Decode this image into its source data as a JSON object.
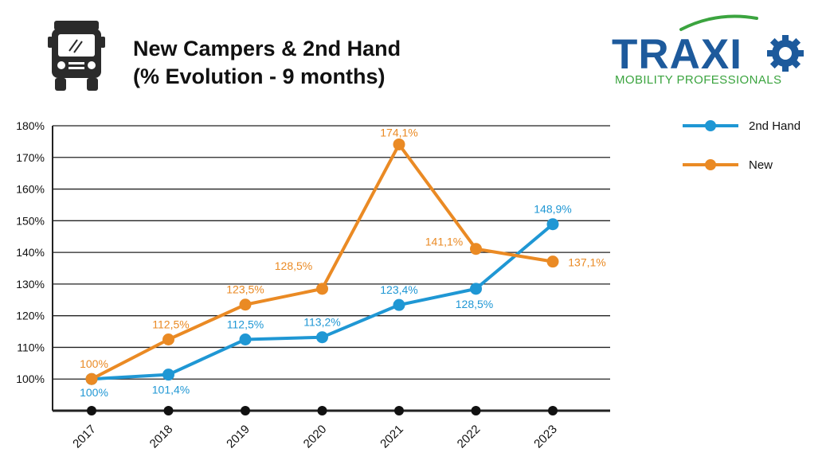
{
  "header": {
    "title_line1": "New Campers & 2nd Hand",
    "title_line2": "(% Evolution - 9 months)"
  },
  "icons": {
    "vehicle": "camper-van-icon",
    "logo": "traxio-logo"
  },
  "logo": {
    "wordmark": "TRAXIO",
    "tagline": "MOBILITY PROFESSIONALS",
    "colors": {
      "wordmark": "#1d5a9c",
      "accent": "#3ba43f"
    }
  },
  "chart_data": {
    "type": "line",
    "title": "New Campers & 2nd Hand (% Evolution - 9 months)",
    "categories": [
      "2017",
      "2018",
      "2019",
      "2020",
      "2021",
      "2022",
      "2023"
    ],
    "ylim": [
      90,
      180
    ],
    "y_ticks": [
      "100%",
      "110%",
      "120%",
      "130%",
      "140%",
      "150%",
      "160%",
      "170%",
      "180%"
    ],
    "grid": true,
    "legend_position": "right",
    "series": [
      {
        "name": "2nd Hand",
        "color": "#1f97d4",
        "values": [
          100,
          101.4,
          112.5,
          113.2,
          123.4,
          128.5,
          148.9
        ],
        "labels": [
          "100%",
          "101,4%",
          "112,5%",
          "113,2%",
          "123,4%",
          "128,5%",
          "148,9%"
        ]
      },
      {
        "name": "New",
        "color": "#ea8a24",
        "values": [
          100,
          112.5,
          123.5,
          128.5,
          174.1,
          141.1,
          137.1
        ],
        "labels": [
          "100%",
          "112,5%",
          "123,5%",
          "128,5%",
          "174,1%",
          "141,1%",
          "137,1%"
        ]
      }
    ]
  }
}
